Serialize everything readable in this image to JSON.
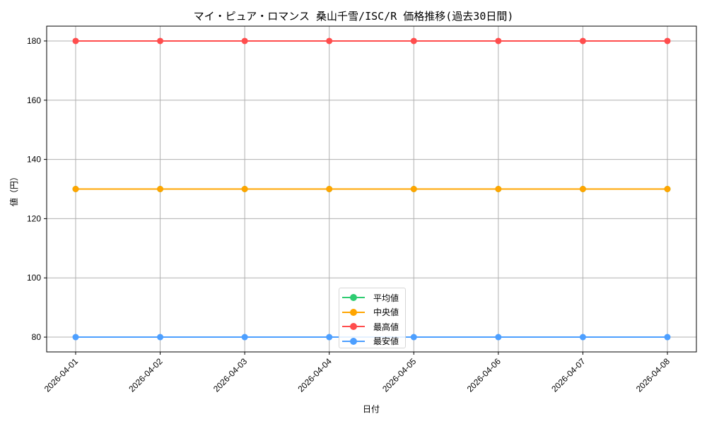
{
  "chart_data": {
    "type": "line",
    "title": "マイ・ピュア・ロマンス 桑山千雪/ISC/R 価格推移(過去30日間)",
    "xlabel": "日付",
    "ylabel": "値（円）",
    "x": [
      "2026-04-01",
      "2026-04-02",
      "2026-04-03",
      "2026-04-04",
      "2026-04-05",
      "2026-04-06",
      "2026-04-07",
      "2026-04-08"
    ],
    "series": [
      {
        "name": "平均値",
        "color": "#2ecc71",
        "values": [
          130,
          130,
          130,
          130,
          130,
          130,
          130,
          130
        ]
      },
      {
        "name": "中央値",
        "color": "#ffa500",
        "values": [
          130,
          130,
          130,
          130,
          130,
          130,
          130,
          130
        ]
      },
      {
        "name": "最高値",
        "color": "#ff4d4d",
        "values": [
          180,
          180,
          180,
          180,
          180,
          180,
          180,
          180
        ]
      },
      {
        "name": "最安値",
        "color": "#4d9fff",
        "values": [
          80,
          80,
          80,
          80,
          80,
          80,
          80,
          80
        ]
      }
    ],
    "yticks": [
      80,
      100,
      120,
      140,
      160,
      180
    ],
    "ylim": [
      75,
      185
    ],
    "grid": true,
    "legend_position": "lower center",
    "marker": "circle"
  }
}
